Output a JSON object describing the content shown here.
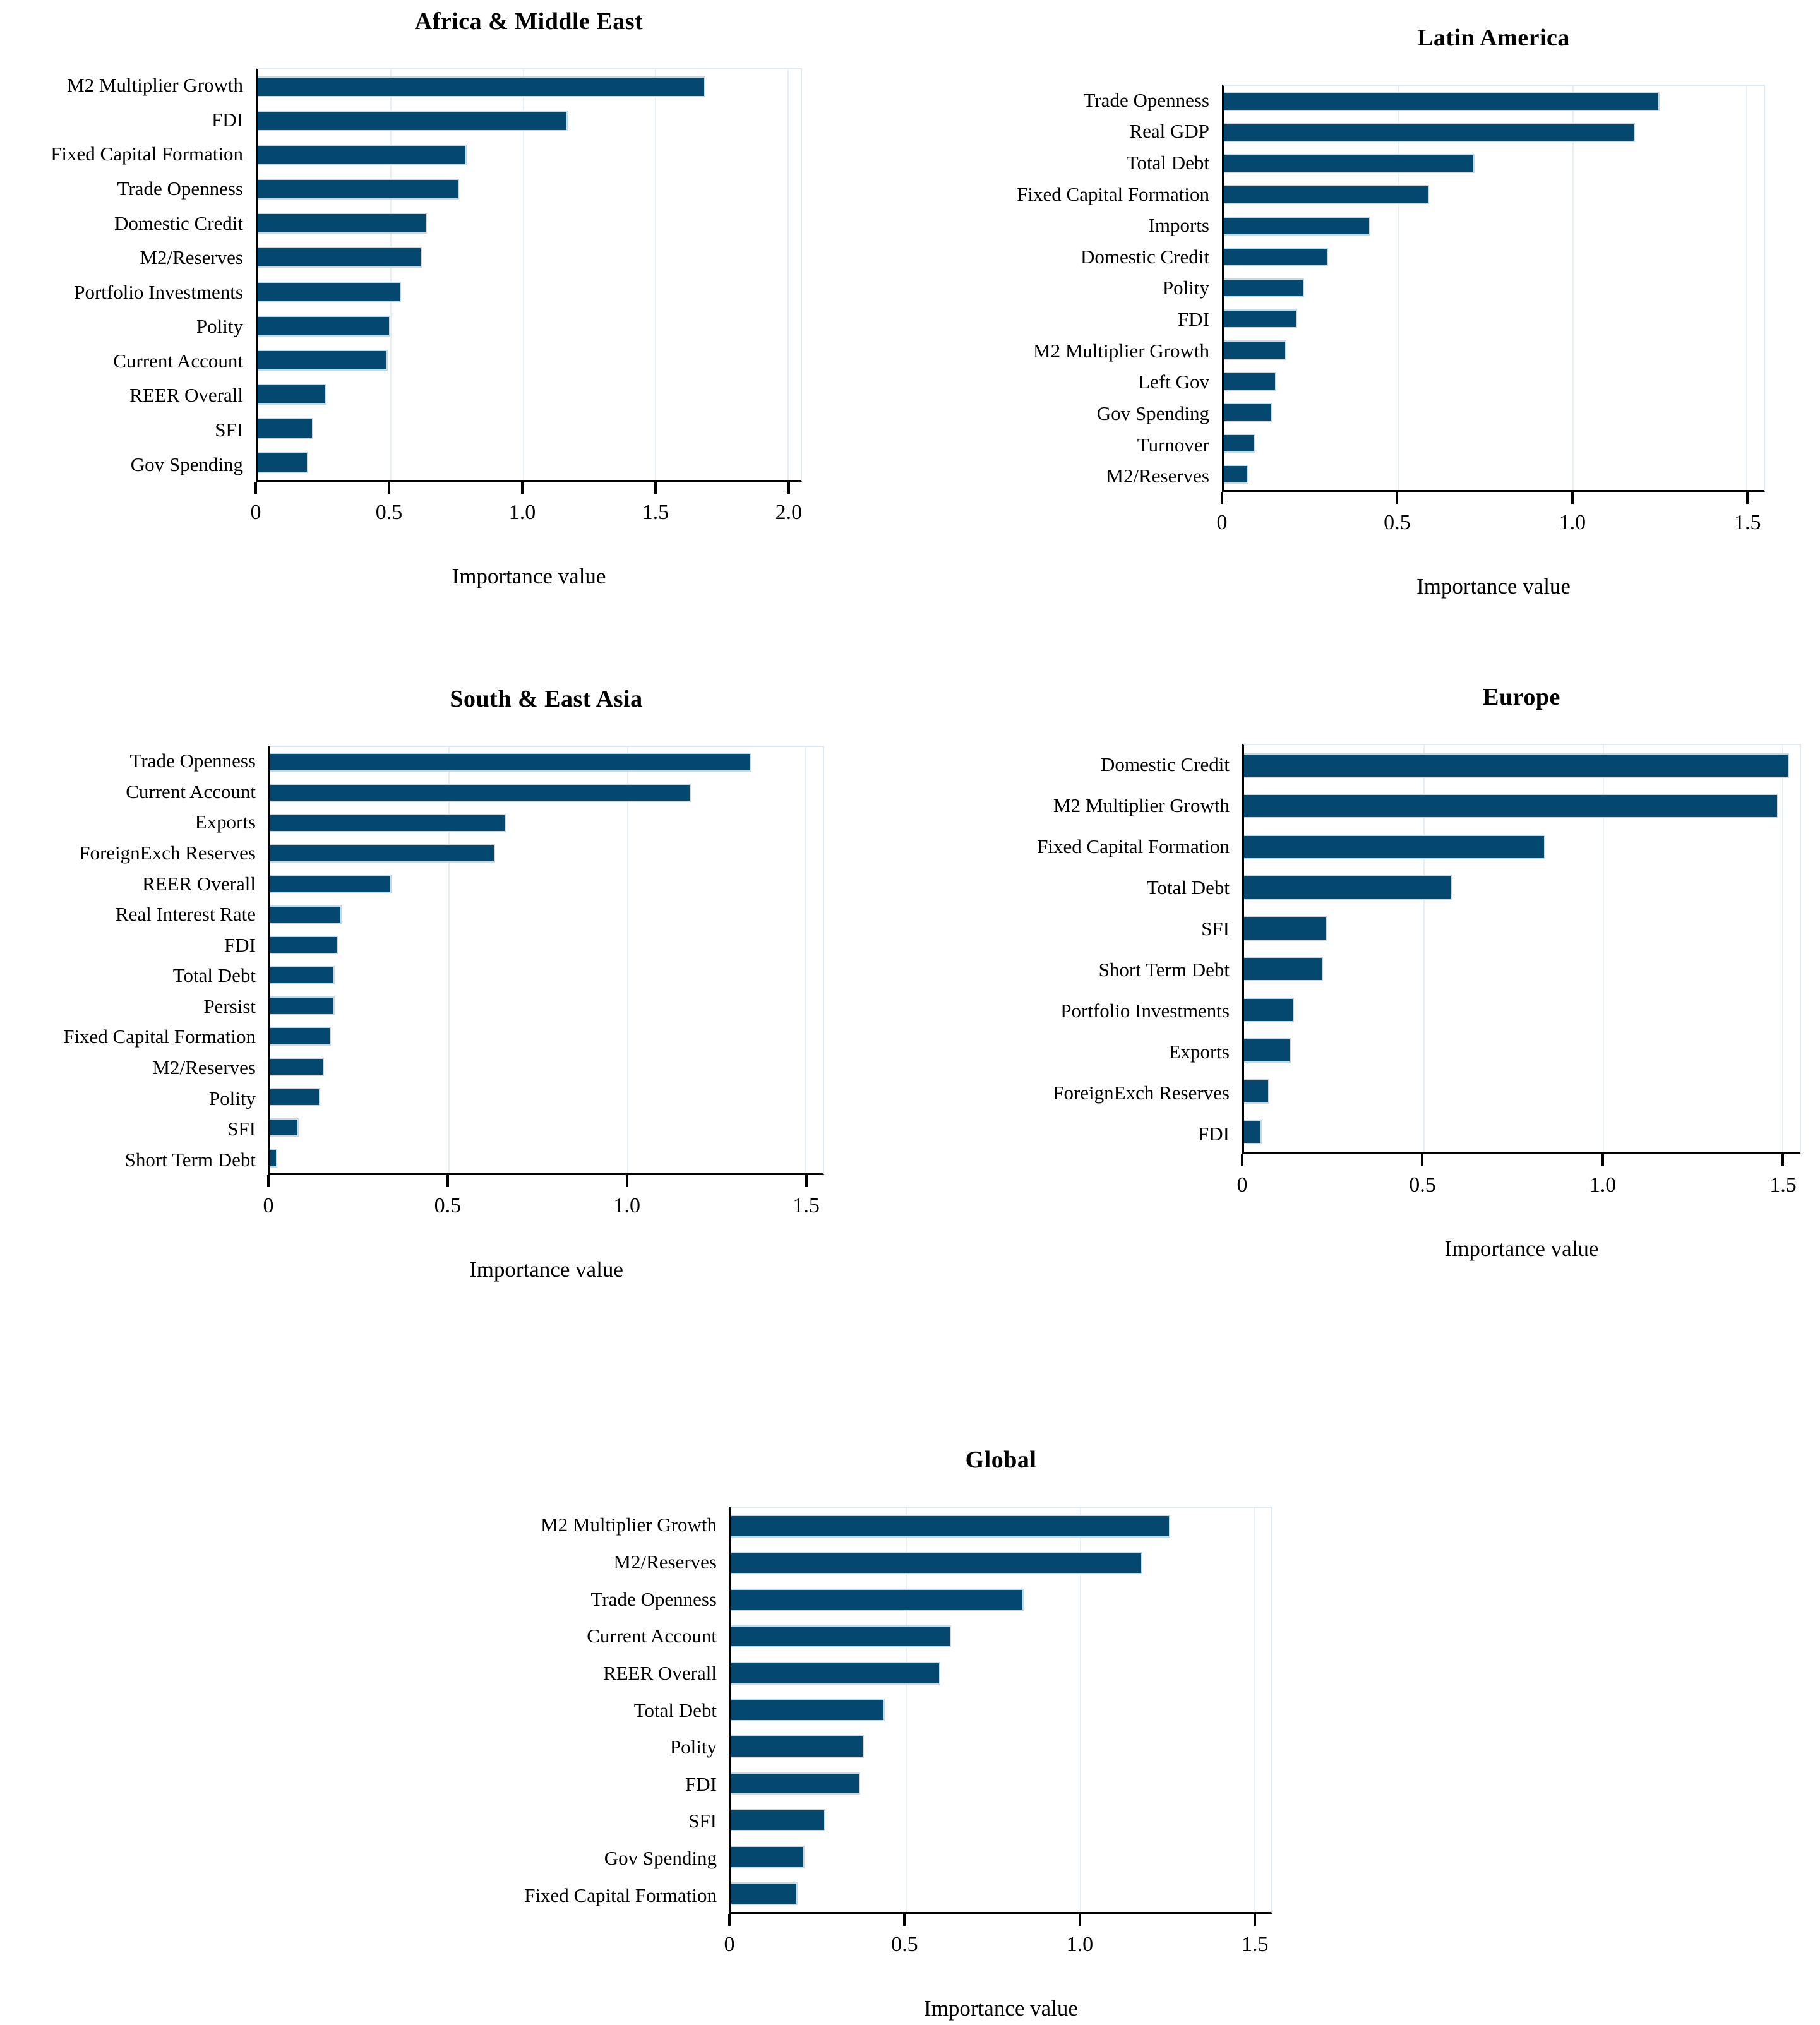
{
  "figure": {
    "description_label": "Importance value",
    "colors": {
      "bar_fill": "#05486f",
      "bar_outline": "#c6dae6",
      "axis_line": "#000000",
      "gridline": "#e9f0f5",
      "plot_border": "#dfe9f1",
      "background": "#ffffff",
      "text": "#000000"
    }
  },
  "chart_data": [
    {
      "type": "bar",
      "orientation": "horizontal",
      "title": "Africa & Middle East",
      "xlabel": "Importance value",
      "ylabel": "",
      "xlim": [
        0,
        2.05
      ],
      "xticks": [
        0,
        0.5,
        1.0,
        1.5,
        2.0
      ],
      "xtick_labels": [
        "0",
        "0.5",
        "1.0",
        "1.5",
        "2.0"
      ],
      "grid": true,
      "legend": false,
      "categories": [
        "M2 Multiplier Growth",
        "FDI",
        "Fixed Capital Formation",
        "Trade Openness",
        "Domestic Credit",
        "M2/Reserves",
        "Portfolio Investments",
        "Polity",
        "Current Account",
        "REER Overall",
        "SFI",
        "Gov Spending"
      ],
      "values": [
        1.69,
        1.17,
        0.79,
        0.76,
        0.64,
        0.62,
        0.54,
        0.5,
        0.49,
        0.26,
        0.21,
        0.19
      ]
    },
    {
      "type": "bar",
      "orientation": "horizontal",
      "title": "Latin America",
      "xlabel": "Importance value",
      "ylabel": "",
      "xlim": [
        0,
        1.55
      ],
      "xticks": [
        0,
        0.5,
        1.0,
        1.5
      ],
      "xtick_labels": [
        "0",
        "0.5",
        "1.0",
        "1.5"
      ],
      "grid": true,
      "legend": false,
      "categories": [
        "Trade Openness",
        "Real GDP",
        "Total Debt",
        "Fixed Capital Formation",
        "Imports",
        "Domestic Credit",
        "Polity",
        "FDI",
        "M2 Multiplier Growth",
        "Left Gov",
        "Gov Spending",
        "Turnover",
        "M2/Reserves"
      ],
      "values": [
        1.25,
        1.18,
        0.72,
        0.59,
        0.42,
        0.3,
        0.23,
        0.21,
        0.18,
        0.15,
        0.14,
        0.09,
        0.07
      ]
    },
    {
      "type": "bar",
      "orientation": "horizontal",
      "title": "South & East Asia",
      "xlabel": "Importance value",
      "ylabel": "",
      "xlim": [
        0,
        1.55
      ],
      "xticks": [
        0,
        0.5,
        1.0,
        1.5
      ],
      "xtick_labels": [
        "0",
        "0.5",
        "1.0",
        "1.5"
      ],
      "grid": true,
      "legend": false,
      "categories": [
        "Trade Openness",
        "Current Account",
        "Exports",
        "ForeignExch Reserves",
        "REER Overall",
        "Real Interest Rate",
        "FDI",
        "Total Debt",
        "Persist",
        "Fixed Capital Formation",
        "M2/Reserves",
        "Polity",
        "SFI",
        "Short Term Debt"
      ],
      "values": [
        1.35,
        1.18,
        0.66,
        0.63,
        0.34,
        0.2,
        0.19,
        0.18,
        0.18,
        0.17,
        0.15,
        0.14,
        0.08,
        0.02
      ]
    },
    {
      "type": "bar",
      "orientation": "horizontal",
      "title": "Europe",
      "xlabel": "Importance value",
      "ylabel": "",
      "xlim": [
        0,
        1.55
      ],
      "xticks": [
        0,
        0.5,
        1.0,
        1.5
      ],
      "xtick_labels": [
        "0",
        "0.5",
        "1.0",
        "1.5"
      ],
      "grid": true,
      "legend": false,
      "categories": [
        "Domestic Credit",
        "M2 Multiplier Growth",
        "Fixed Capital Formation",
        "Total Debt",
        "SFI",
        "Short Term Debt",
        "Portfolio Investments",
        "Exports",
        "ForeignExch Reserves",
        "FDI"
      ],
      "values": [
        1.52,
        1.49,
        0.84,
        0.58,
        0.23,
        0.22,
        0.14,
        0.13,
        0.07,
        0.05
      ]
    },
    {
      "type": "bar",
      "orientation": "horizontal",
      "title": "Global",
      "xlabel": "Importance value",
      "ylabel": "",
      "xlim": [
        0,
        1.55
      ],
      "xticks": [
        0,
        0.5,
        1.0,
        1.5
      ],
      "xtick_labels": [
        "0",
        "0.5",
        "1.0",
        "1.5"
      ],
      "grid": true,
      "legend": false,
      "categories": [
        "M2 Multiplier Growth",
        "M2/Reserves",
        "Trade Openness",
        "Current Account",
        "REER Overall",
        "Total Debt",
        "Polity",
        "FDI",
        "SFI",
        "Gov Spending",
        "Fixed Capital Formation"
      ],
      "values": [
        1.26,
        1.18,
        0.84,
        0.63,
        0.6,
        0.44,
        0.38,
        0.37,
        0.27,
        0.21,
        0.19
      ]
    }
  ]
}
